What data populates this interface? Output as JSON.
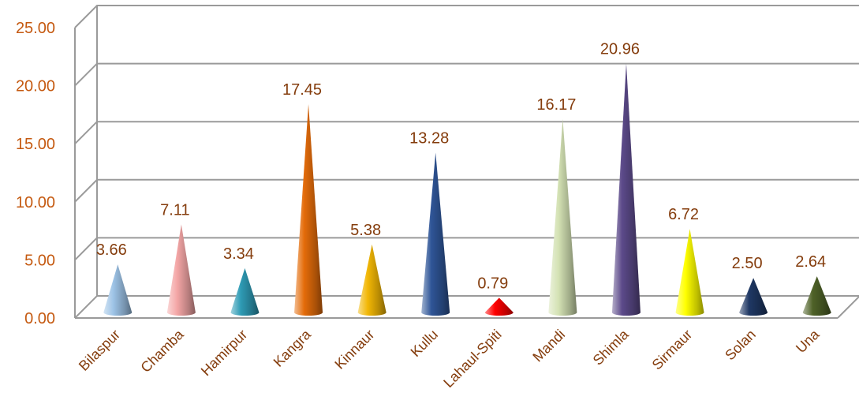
{
  "chart_data": {
    "type": "bar",
    "subtype": "3d-cone",
    "title": "",
    "xlabel": "",
    "ylabel": "",
    "ylim": [
      0,
      25
    ],
    "y_ticks": [
      "0.00",
      "5.00",
      "10.00",
      "15.00",
      "20.00",
      "25.00"
    ],
    "grid": true,
    "legend": "none",
    "categories": [
      "Bilaspur",
      "Chamba",
      "Hamirpur",
      "Kangra",
      "Kinnaur",
      "Kullu",
      "Lahaul-Spiti",
      "Mandi",
      "Shimla",
      "Sirmaur",
      "Solan",
      "Una"
    ],
    "values": [
      3.66,
      7.11,
      3.34,
      17.45,
      5.38,
      13.28,
      0.79,
      16.17,
      20.96,
      6.72,
      2.5,
      2.64
    ],
    "value_labels": [
      "3.66",
      "7.11",
      "3.34",
      "17.45",
      "5.38",
      "13.28",
      "0.79",
      "16.17",
      "20.96",
      "6.72",
      "2.50",
      "2.64"
    ],
    "colors": [
      "#9dc3e6",
      "#f4a6a6",
      "#2e9bb5",
      "#e46c0a",
      "#f2b705",
      "#2f5597",
      "#ff0000",
      "#d4e2b4",
      "#5c4a8a",
      "#ffff00",
      "#1f3864",
      "#4f6228"
    ],
    "tick_label_color": "#c55a11",
    "category_label_color": "#843c0c",
    "value_label_color": "#843c0c"
  }
}
